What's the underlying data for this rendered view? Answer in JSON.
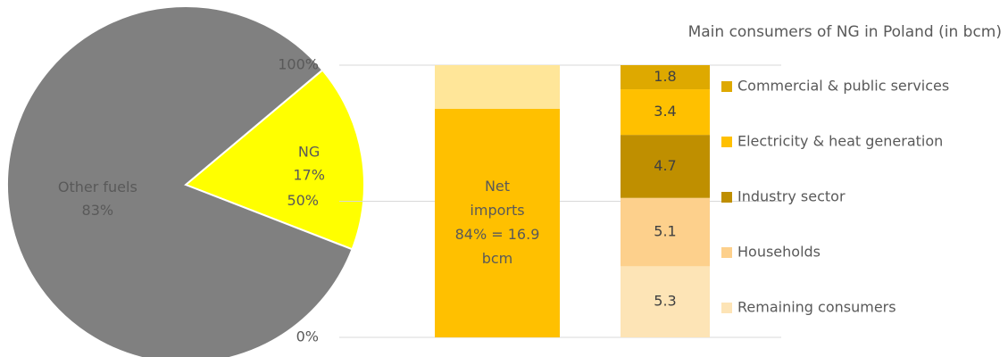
{
  "chart_data": [
    {
      "type": "pie",
      "categories": [
        "NG",
        "Other fuels"
      ],
      "values": [
        17,
        83
      ],
      "value_labels": [
        "17%",
        "83%"
      ],
      "colors": [
        "#ffff00",
        "#808080"
      ]
    },
    {
      "type": "stacked",
      "title": "Main consumers of NG in Poland (in bcm)",
      "ylim": [
        0,
        100
      ],
      "yticks": [
        {
          "value": 0,
          "label": "0%"
        },
        {
          "value": 50,
          "label": "50%"
        },
        {
          "value": 100,
          "label": "100%"
        }
      ],
      "grid": true,
      "imports": {
        "values": [
          84,
          16
        ],
        "colors": [
          "#ffc000",
          "#ffe699"
        ],
        "label": [
          "Net",
          "imports",
          "84% = 16.9",
          "bcm"
        ]
      },
      "y2lim": [
        0,
        20.3
      ],
      "series": [
        {
          "name": "Remaining consumers",
          "color": "#fde4b6",
          "values": [
            5.3
          ],
          "axis": "y2"
        },
        {
          "name": "Households",
          "color": "#fdd08c",
          "values": [
            5.1
          ],
          "axis": "y2"
        },
        {
          "name": "Industry sector",
          "color": "#bf8f00",
          "values": [
            4.7
          ],
          "axis": "y2"
        },
        {
          "name": "Electricity & heat generation",
          "color": "#ffc000",
          "values": [
            3.4
          ],
          "axis": "y2"
        },
        {
          "name": "Commercial & public services",
          "color": "#dea900",
          "values": [
            1.8
          ],
          "axis": "y2"
        }
      ]
    }
  ]
}
